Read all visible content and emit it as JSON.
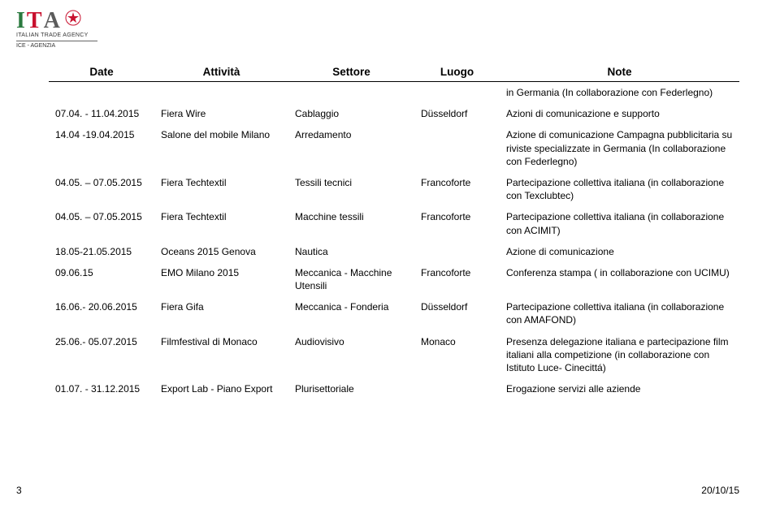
{
  "logo": {
    "i": "I",
    "t": "T",
    "a": "A",
    "subtitle": "ITALIAN TRADE AGENCY",
    "ice": "ICE - AGENZIA"
  },
  "table": {
    "headers": [
      "Date",
      "Attività",
      "Settore",
      "Luogo",
      "Note"
    ],
    "col_widths": [
      "130px",
      "165px",
      "155px",
      "105px",
      "auto"
    ],
    "header_fontsize": 13.5,
    "cell_fontsize": 12,
    "border_color": "#000000",
    "rows": [
      {
        "date": "",
        "attivita": "",
        "settore": "",
        "luogo": "",
        "note": "in Germania (In collaborazione con Federlegno)"
      },
      {
        "date": "07.04. - 11.04.2015",
        "attivita": "Fiera Wire",
        "settore": "Cablaggio",
        "luogo": "Düsseldorf",
        "note": "Azioni di comunicazione e supporto"
      },
      {
        "date": "14.04 -19.04.2015",
        "attivita": "Salone del mobile Milano",
        "settore": "Arredamento",
        "luogo": "",
        "note": "Azione di comunicazione Campagna pubblicitaria su riviste specializzate in Germania (In collaborazione con Federlegno)"
      },
      {
        "date": "04.05. – 07.05.2015",
        "attivita": "Fiera Techtextil",
        "settore": "Tessili tecnici",
        "luogo": "Francoforte",
        "note": "Partecipazione collettiva italiana (in collaborazione con Texclubtec)"
      },
      {
        "date": "04.05. – 07.05.2015",
        "attivita": "Fiera Techtextil",
        "settore": "Macchine tessili",
        "luogo": "Francoforte",
        "note": "Partecipazione collettiva italiana (in collaborazione con ACIMIT)"
      },
      {
        "date": "18.05-21.05.2015",
        "attivita": "Oceans 2015 Genova",
        "settore": "Nautica",
        "luogo": "",
        "note": "Azione di comunicazione"
      },
      {
        "date": "09.06.15",
        "attivita": "EMO Milano 2015",
        "settore": "Meccanica - Macchine Utensili",
        "luogo": "Francoforte",
        "note": "Conferenza stampa ( in collaborazione con UCIMU)"
      },
      {
        "date": "16.06.- 20.06.2015",
        "attivita": "Fiera Gifa",
        "settore": "Meccanica - Fonderia",
        "luogo": "Düsseldorf",
        "note": "Partecipazione collettiva italiana (in collaborazione con AMAFOND)"
      },
      {
        "date": "25.06.- 05.07.2015",
        "attivita": "Filmfestival di Monaco",
        "settore": "Audiovisivo",
        "luogo": "Monaco",
        "note": "Presenza delegazione italiana e partecipazione film italiani alla competizione (in collaborazione con Istituto Luce- Cinecittá)"
      },
      {
        "date": "01.07. - 31.12.2015",
        "attivita": "Export Lab - Piano Export",
        "settore": "Plurisettoriale",
        "luogo": "",
        "note": "Erogazione servizi alle aziende"
      }
    ]
  },
  "colors": {
    "logo_green": "#2a7a3f",
    "logo_red": "#c8102e",
    "logo_gray": "#5b5b5b",
    "text": "#000000",
    "background": "#ffffff"
  },
  "footer": {
    "page": "3",
    "date": "20/10/15"
  }
}
